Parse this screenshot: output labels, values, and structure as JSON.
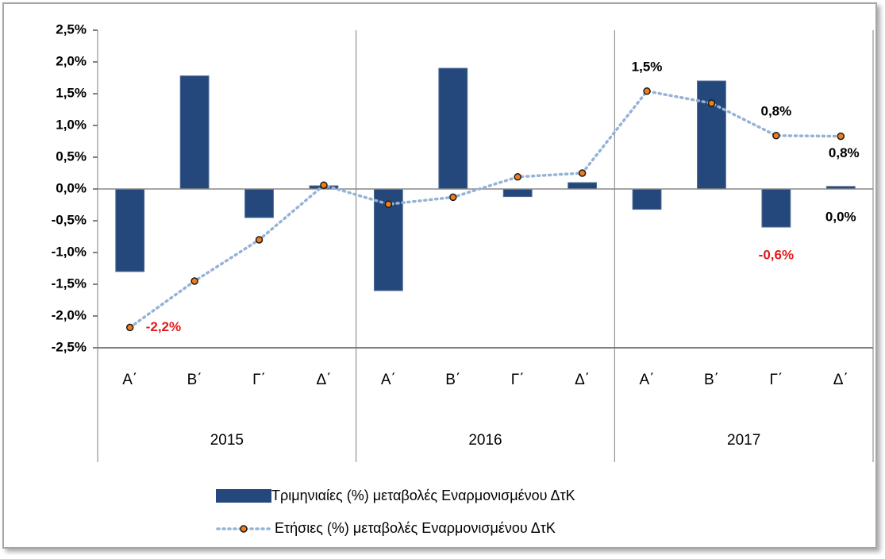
{
  "chart_data": {
    "type": "bar-line",
    "categories": [
      "Α΄",
      "Β΄",
      "Γ΄",
      "Δ΄",
      "Α΄",
      "Β΄",
      "Γ΄",
      "Δ΄",
      "Α΄",
      "Β΄",
      "Γ΄",
      "Δ΄"
    ],
    "groups": [
      "2015",
      "2016",
      "2017"
    ],
    "series": [
      {
        "name": "Τριμηνιαίες (%) μεταβολές Εναρμονισμένου ΔτΚ",
        "type": "bar",
        "color": "#24487b",
        "values": [
          -1.3,
          1.78,
          -0.45,
          0.05,
          -1.6,
          1.9,
          -0.12,
          0.1,
          -0.32,
          1.7,
          -0.6,
          0.04
        ],
        "value_labels": [
          null,
          null,
          null,
          null,
          null,
          null,
          null,
          null,
          null,
          null,
          "-0,6%",
          "0,0%"
        ]
      },
      {
        "name": "Ετήσιες (%) μεταβολές Εναρμονισμένου ΔτΚ",
        "type": "line",
        "color": "#95b3d7",
        "marker_color": "#f07d1a",
        "values": [
          -2.18,
          -1.45,
          -0.8,
          0.06,
          -0.24,
          -0.13,
          0.19,
          0.25,
          1.54,
          1.35,
          0.84,
          0.83
        ],
        "value_labels": [
          "-2,2%",
          null,
          null,
          null,
          null,
          null,
          null,
          null,
          "1,5%",
          null,
          "0,8%",
          "0,8%"
        ]
      }
    ],
    "ylim": [
      -2.5,
      2.5
    ],
    "yticks": [
      {
        "value": -2.5,
        "label": "-2,5%"
      },
      {
        "value": -2,
        "label": "-2,0%"
      },
      {
        "value": -1.5,
        "label": "-1,5%"
      },
      {
        "value": -1,
        "label": "-1,0%"
      },
      {
        "value": -0.5,
        "label": "-0,5%"
      },
      {
        "value": 0,
        "label": "0,0%"
      },
      {
        "value": 0.5,
        "label": "0,5%"
      },
      {
        "value": 1,
        "label": "1,0%"
      },
      {
        "value": 1.5,
        "label": "1,5%"
      },
      {
        "value": 2,
        "label": "2,0%"
      },
      {
        "value": 2.5,
        "label": "2,5%"
      }
    ],
    "negative_label_color": "#e31a1c"
  }
}
